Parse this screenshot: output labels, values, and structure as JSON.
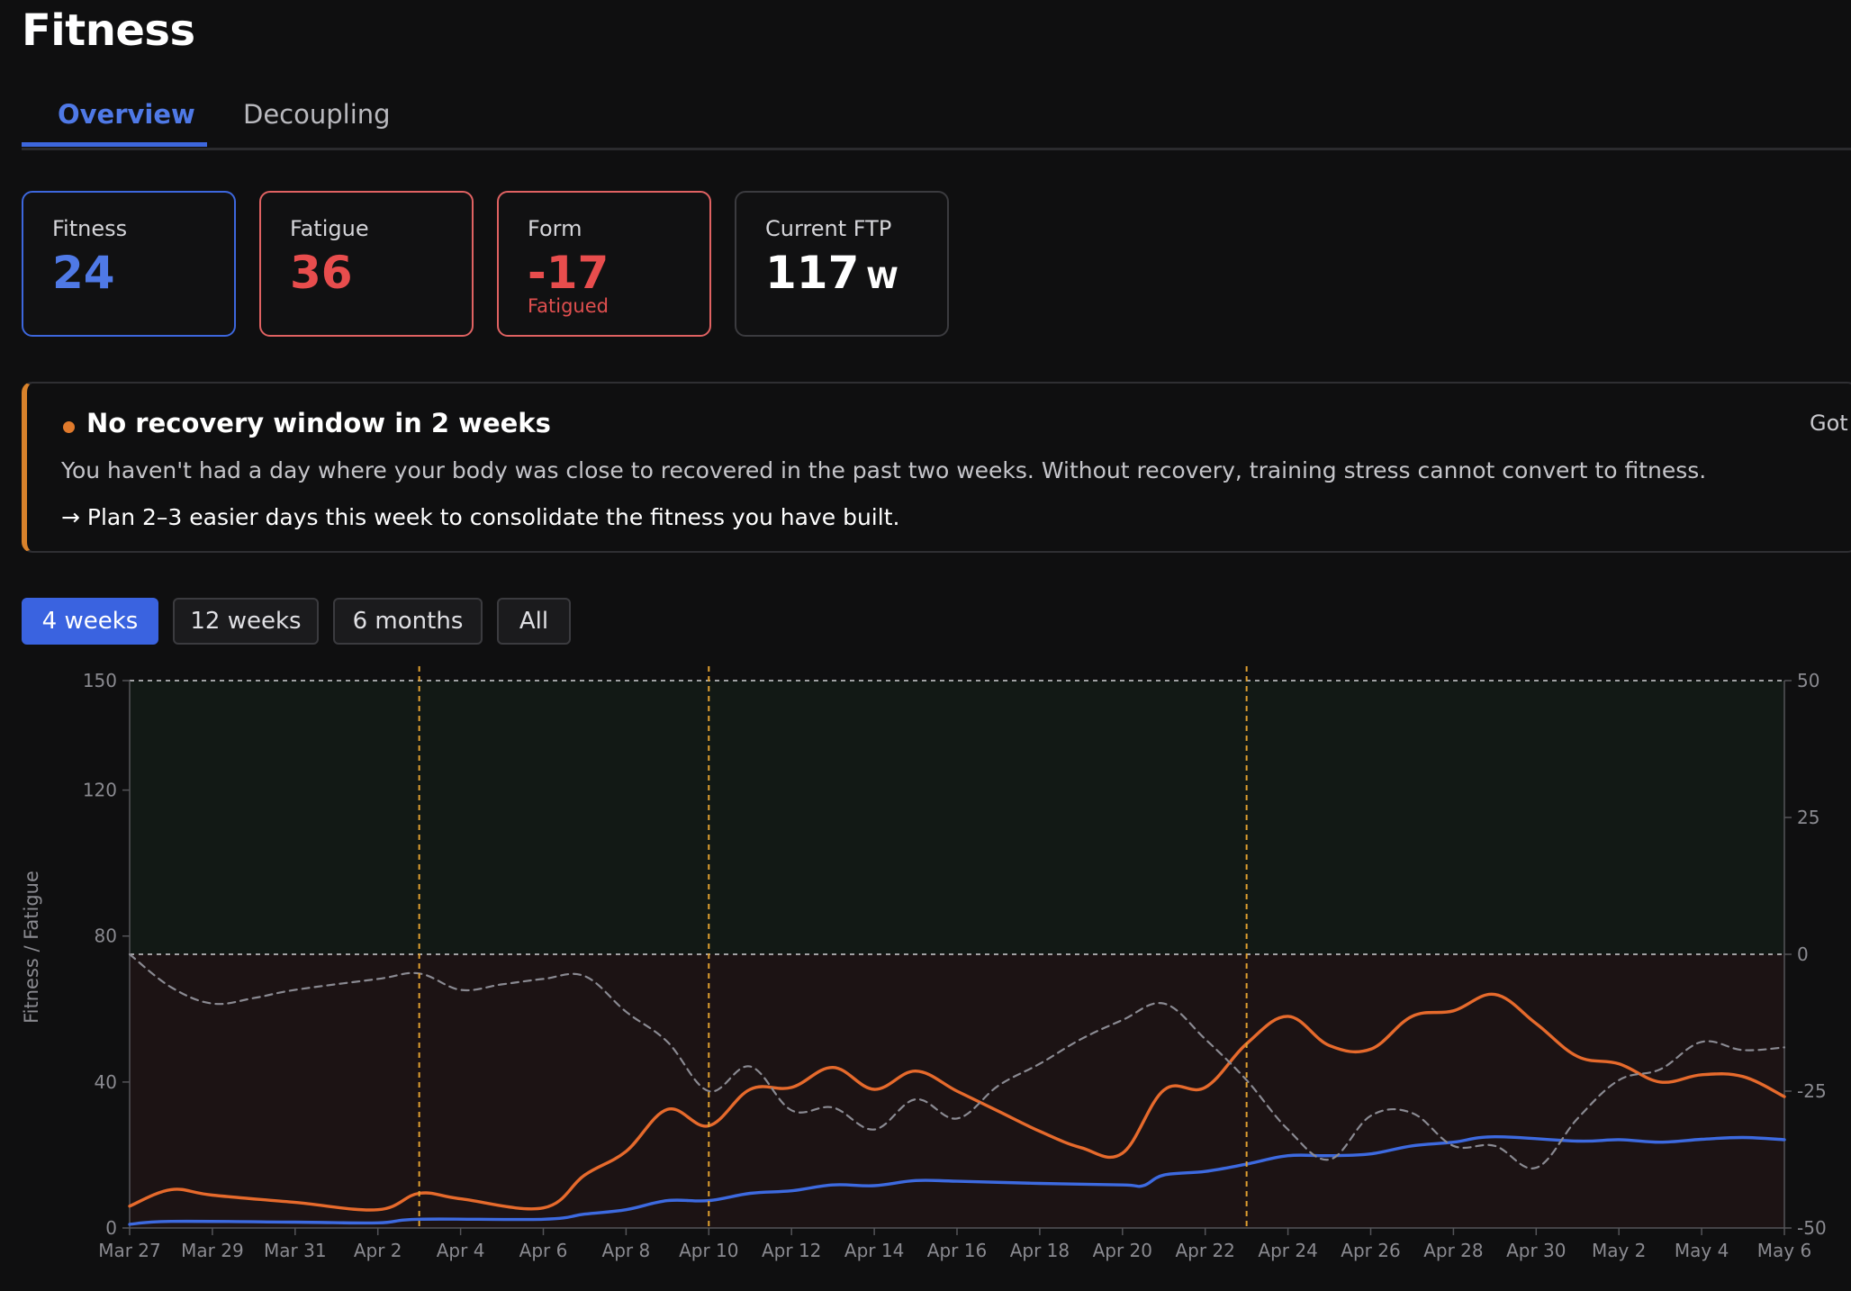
{
  "page_title": "Fitness",
  "tabs": [
    {
      "label": "Overview",
      "active": true
    },
    {
      "label": "Decoupling",
      "active": false
    }
  ],
  "metrics": {
    "fitness": {
      "label": "Fitness",
      "value": "24",
      "color": "#4f79e6",
      "border": "#3d67dd"
    },
    "fatigue": {
      "label": "Fatigue",
      "value": "36",
      "color": "#e84d4d",
      "border": "#e06262"
    },
    "form": {
      "label": "Form",
      "value": "-17",
      "status": "Fatigued",
      "color": "#e84d4d",
      "border": "#e06262"
    },
    "ftp": {
      "label": "Current FTP",
      "value": "117",
      "unit": "W"
    }
  },
  "alert": {
    "title": "No recovery window in 2 weeks",
    "body": "You haven't had a day where your body was close to recovered in the past two weeks. Without recovery, training stress cannot convert to fitness.",
    "action": "→ Plan 2–3 easier days this week to consolidate the fitness you have built.",
    "dismiss": "Got",
    "accent": "#d9822b"
  },
  "range_buttons": [
    {
      "label": "4 weeks",
      "active": true
    },
    {
      "label": "12 weeks",
      "active": false
    },
    {
      "label": "6 months",
      "active": false
    },
    {
      "label": "All",
      "active": false
    }
  ],
  "chart_data": {
    "type": "line",
    "ylabel": "Fitness / Fatigue",
    "ylim": [
      0,
      150
    ],
    "y_ticks": [
      0,
      40,
      80,
      120,
      150
    ],
    "y2lim": [
      -50,
      50
    ],
    "y2_ticks": [
      -50,
      -25,
      0,
      25,
      50
    ],
    "x_labels": [
      "Mar 27",
      "Mar 29",
      "Mar 31",
      "Apr 2",
      "Apr 4",
      "Apr 6",
      "Apr 8",
      "Apr 10",
      "Apr 12",
      "Apr 14",
      "Apr 16",
      "Apr 18",
      "Apr 20",
      "Apr 22",
      "Apr 24",
      "Apr 26",
      "Apr 28",
      "Apr 30",
      "May 2",
      "May 4",
      "May 6"
    ],
    "x_days": 40,
    "zones": [
      {
        "name": "positive form",
        "from": 0,
        "to": 50,
        "color": "#121915"
      },
      {
        "name": "negative form",
        "from": -50,
        "to": 0,
        "color": "#1c1314"
      }
    ],
    "markers_day": [
      7,
      14,
      27
    ],
    "marker_color": "#e0a030",
    "series": [
      {
        "name": "Fitness",
        "axis": "left",
        "color": "#3d6ae0",
        "style": "solid",
        "values": [
          [
            0,
            1
          ],
          [
            1,
            1.8
          ],
          [
            4,
            1.6
          ],
          [
            6,
            1.4
          ],
          [
            7,
            2.4
          ],
          [
            10,
            2.4
          ],
          [
            11,
            3.8
          ],
          [
            12,
            5
          ],
          [
            13,
            7.5
          ],
          [
            14,
            7.5
          ],
          [
            15,
            9.5
          ],
          [
            16,
            10.2
          ],
          [
            17,
            11.8
          ],
          [
            18,
            11.6
          ],
          [
            19,
            13
          ],
          [
            20,
            12.8
          ],
          [
            22,
            12.2
          ],
          [
            24,
            11.8
          ],
          [
            24.5,
            11.6
          ],
          [
            25,
            14.5
          ],
          [
            26,
            15.5
          ],
          [
            27,
            17.5
          ],
          [
            28,
            19.8
          ],
          [
            29,
            19.8
          ],
          [
            30,
            20.3
          ],
          [
            31,
            22.5
          ],
          [
            32,
            23.5
          ],
          [
            33,
            25
          ],
          [
            35,
            23.8
          ],
          [
            36,
            24.2
          ],
          [
            37,
            23.5
          ],
          [
            38,
            24.3
          ],
          [
            39,
            24.8
          ],
          [
            40,
            24.2
          ]
        ]
      },
      {
        "name": "Fatigue",
        "axis": "left",
        "color": "#e66a2c",
        "style": "solid",
        "values": [
          [
            0,
            6
          ],
          [
            1,
            10.5
          ],
          [
            2,
            9
          ],
          [
            4,
            7
          ],
          [
            6,
            5
          ],
          [
            7,
            9.5
          ],
          [
            8,
            8
          ],
          [
            10,
            5.5
          ],
          [
            11,
            14.5
          ],
          [
            12,
            21
          ],
          [
            13,
            32.5
          ],
          [
            14,
            28
          ],
          [
            15,
            38
          ],
          [
            16,
            38.5
          ],
          [
            17,
            44
          ],
          [
            18,
            38
          ],
          [
            19,
            43
          ],
          [
            20,
            37.5
          ],
          [
            21,
            32
          ],
          [
            22,
            26.5
          ],
          [
            23,
            22
          ],
          [
            24,
            20.5
          ],
          [
            25,
            37.8
          ],
          [
            26,
            38.5
          ],
          [
            27,
            50.5
          ],
          [
            28,
            58
          ],
          [
            29,
            50
          ],
          [
            30,
            49
          ],
          [
            31,
            58
          ],
          [
            32,
            59.5
          ],
          [
            33,
            64
          ],
          [
            34,
            56
          ],
          [
            35,
            47
          ],
          [
            36,
            45
          ],
          [
            37,
            40
          ],
          [
            38,
            42
          ],
          [
            39,
            41.5
          ],
          [
            40,
            36
          ]
        ]
      },
      {
        "name": "Form",
        "axis": "right",
        "color": "#8a8a92",
        "style": "dashed",
        "values": [
          [
            0,
            0
          ],
          [
            1,
            -6
          ],
          [
            2,
            -9
          ],
          [
            3,
            -8
          ],
          [
            4,
            -6.5
          ],
          [
            6,
            -4.5
          ],
          [
            7,
            -3.5
          ],
          [
            8,
            -6.5
          ],
          [
            9,
            -5.5
          ],
          [
            10,
            -4.5
          ],
          [
            11,
            -4
          ],
          [
            12,
            -10.5
          ],
          [
            13,
            -16
          ],
          [
            14,
            -25
          ],
          [
            15,
            -20.5
          ],
          [
            16,
            -28.5
          ],
          [
            17,
            -28
          ],
          [
            18,
            -32
          ],
          [
            19,
            -26.5
          ],
          [
            20,
            -30
          ],
          [
            21,
            -24
          ],
          [
            22,
            -20
          ],
          [
            23,
            -15.5
          ],
          [
            24,
            -12
          ],
          [
            25,
            -9
          ],
          [
            26,
            -15.5
          ],
          [
            27,
            -23
          ],
          [
            28,
            -32
          ],
          [
            29,
            -37.5
          ],
          [
            30,
            -29.5
          ],
          [
            31,
            -29
          ],
          [
            32,
            -35
          ],
          [
            33,
            -35
          ],
          [
            34,
            -39
          ],
          [
            35,
            -30
          ],
          [
            36,
            -23
          ],
          [
            37,
            -21
          ],
          [
            38,
            -16
          ],
          [
            39,
            -17.5
          ],
          [
            40,
            -17
          ]
        ]
      }
    ]
  }
}
